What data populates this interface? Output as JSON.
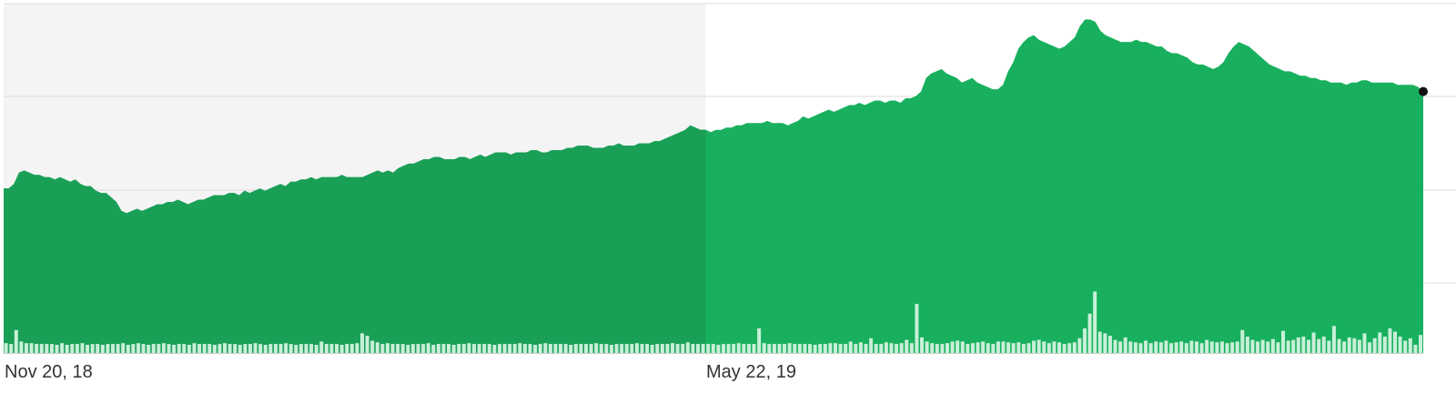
{
  "chart_data": {
    "type": "area",
    "title": "",
    "xlabel": "",
    "ylabel": "",
    "x_ticks": [
      "Nov 20, 18",
      "May 22, 19"
    ],
    "grid": true,
    "legend": "none",
    "shaded_region": {
      "from": "Nov 20, 18",
      "to": "May 22, 19"
    },
    "colors": {
      "area": "#18b05e",
      "area_shaded": "#1a9f57",
      "volume": "#c8f0d8",
      "gridline": "#dddddd",
      "shaded_background": "#f4f4f4",
      "end_marker": "#111111"
    },
    "ylim": [
      0,
      1
    ],
    "price_series": {
      "name": "",
      "values": [
        0.73,
        0.73,
        0.75,
        0.8,
        0.81,
        0.8,
        0.79,
        0.79,
        0.78,
        0.78,
        0.77,
        0.78,
        0.77,
        0.76,
        0.77,
        0.75,
        0.74,
        0.74,
        0.72,
        0.71,
        0.71,
        0.69,
        0.67,
        0.63,
        0.62,
        0.63,
        0.64,
        0.63,
        0.64,
        0.65,
        0.66,
        0.66,
        0.67,
        0.67,
        0.68,
        0.67,
        0.66,
        0.67,
        0.68,
        0.68,
        0.69,
        0.7,
        0.7,
        0.7,
        0.71,
        0.71,
        0.7,
        0.72,
        0.71,
        0.72,
        0.73,
        0.72,
        0.73,
        0.74,
        0.75,
        0.74,
        0.76,
        0.76,
        0.77,
        0.77,
        0.78,
        0.77,
        0.78,
        0.78,
        0.78,
        0.78,
        0.79,
        0.78,
        0.78,
        0.78,
        0.78,
        0.79,
        0.8,
        0.81,
        0.8,
        0.81,
        0.8,
        0.82,
        0.83,
        0.84,
        0.84,
        0.85,
        0.86,
        0.86,
        0.87,
        0.87,
        0.86,
        0.86,
        0.86,
        0.87,
        0.87,
        0.86,
        0.87,
        0.88,
        0.87,
        0.88,
        0.89,
        0.89,
        0.89,
        0.88,
        0.89,
        0.89,
        0.89,
        0.9,
        0.9,
        0.89,
        0.89,
        0.9,
        0.9,
        0.9,
        0.91,
        0.91,
        0.92,
        0.92,
        0.92,
        0.91,
        0.91,
        0.91,
        0.92,
        0.92,
        0.93,
        0.92,
        0.92,
        0.92,
        0.93,
        0.93,
        0.93,
        0.94,
        0.94,
        0.95,
        0.96,
        0.97,
        0.98,
        0.99,
        1.01,
        1.0,
        0.99,
        0.99,
        0.98,
        0.99,
        0.99,
        1.0,
        1.0,
        1.01,
        1.01,
        1.02,
        1.02,
        1.02,
        1.02,
        1.03,
        1.02,
        1.02,
        1.02,
        1.01,
        1.02,
        1.03,
        1.05,
        1.04,
        1.05,
        1.06,
        1.07,
        1.08,
        1.07,
        1.08,
        1.09,
        1.1,
        1.1,
        1.11,
        1.1,
        1.11,
        1.12,
        1.12,
        1.11,
        1.12,
        1.12,
        1.11,
        1.13,
        1.13,
        1.14,
        1.16,
        1.22,
        1.24,
        1.25,
        1.26,
        1.24,
        1.23,
        1.22,
        1.2,
        1.21,
        1.22,
        1.2,
        1.19,
        1.18,
        1.17,
        1.17,
        1.19,
        1.25,
        1.29,
        1.35,
        1.38,
        1.4,
        1.41,
        1.39,
        1.38,
        1.37,
        1.36,
        1.35,
        1.36,
        1.38,
        1.4,
        1.45,
        1.48,
        1.48,
        1.47,
        1.43,
        1.41,
        1.4,
        1.39,
        1.38,
        1.38,
        1.38,
        1.39,
        1.38,
        1.38,
        1.37,
        1.36,
        1.36,
        1.34,
        1.33,
        1.33,
        1.32,
        1.31,
        1.29,
        1.28,
        1.28,
        1.27,
        1.26,
        1.27,
        1.29,
        1.33,
        1.36,
        1.38,
        1.37,
        1.36,
        1.34,
        1.32,
        1.3,
        1.28,
        1.27,
        1.26,
        1.25,
        1.25,
        1.24,
        1.23,
        1.23,
        1.22,
        1.22,
        1.21,
        1.21,
        1.2,
        1.2,
        1.2,
        1.19,
        1.2,
        1.2,
        1.21,
        1.21,
        1.2,
        1.2,
        1.2,
        1.2,
        1.2,
        1.19,
        1.19,
        1.19,
        1.19,
        1.18,
        1.16
      ]
    },
    "volume_series": {
      "name": "",
      "values": [
        0.12,
        0.11,
        0.28,
        0.14,
        0.12,
        0.12,
        0.11,
        0.11,
        0.11,
        0.11,
        0.1,
        0.12,
        0.1,
        0.11,
        0.11,
        0.12,
        0.1,
        0.11,
        0.11,
        0.1,
        0.11,
        0.11,
        0.11,
        0.12,
        0.1,
        0.11,
        0.12,
        0.11,
        0.1,
        0.11,
        0.11,
        0.12,
        0.11,
        0.1,
        0.11,
        0.11,
        0.1,
        0.12,
        0.11,
        0.11,
        0.11,
        0.1,
        0.11,
        0.12,
        0.11,
        0.11,
        0.1,
        0.11,
        0.11,
        0.12,
        0.11,
        0.1,
        0.11,
        0.11,
        0.11,
        0.12,
        0.11,
        0.1,
        0.11,
        0.11,
        0.11,
        0.1,
        0.14,
        0.11,
        0.11,
        0.11,
        0.1,
        0.11,
        0.11,
        0.12,
        0.24,
        0.21,
        0.15,
        0.13,
        0.11,
        0.12,
        0.11,
        0.11,
        0.11,
        0.1,
        0.11,
        0.11,
        0.11,
        0.12,
        0.1,
        0.11,
        0.11,
        0.11,
        0.1,
        0.11,
        0.11,
        0.12,
        0.11,
        0.11,
        0.11,
        0.11,
        0.1,
        0.11,
        0.11,
        0.11,
        0.11,
        0.12,
        0.11,
        0.11,
        0.1,
        0.11,
        0.12,
        0.11,
        0.11,
        0.11,
        0.11,
        0.1,
        0.11,
        0.11,
        0.11,
        0.11,
        0.12,
        0.11,
        0.11,
        0.1,
        0.11,
        0.11,
        0.11,
        0.11,
        0.12,
        0.11,
        0.11,
        0.1,
        0.11,
        0.11,
        0.11,
        0.12,
        0.11,
        0.11,
        0.13,
        0.11,
        0.11,
        0.11,
        0.11,
        0.11,
        0.1,
        0.11,
        0.11,
        0.11,
        0.12,
        0.11,
        0.11,
        0.11,
        0.3,
        0.12,
        0.11,
        0.11,
        0.11,
        0.11,
        0.12,
        0.11,
        0.11,
        0.11,
        0.11,
        0.1,
        0.11,
        0.11,
        0.12,
        0.12,
        0.11,
        0.11,
        0.14,
        0.11,
        0.13,
        0.11,
        0.18,
        0.11,
        0.11,
        0.13,
        0.12,
        0.11,
        0.12,
        0.16,
        0.12,
        0.6,
        0.19,
        0.14,
        0.12,
        0.11,
        0.11,
        0.12,
        0.14,
        0.15,
        0.14,
        0.11,
        0.12,
        0.13,
        0.14,
        0.12,
        0.11,
        0.14,
        0.14,
        0.13,
        0.12,
        0.13,
        0.11,
        0.12,
        0.15,
        0.16,
        0.14,
        0.12,
        0.14,
        0.13,
        0.11,
        0.12,
        0.13,
        0.18,
        0.3,
        0.48,
        0.75,
        0.26,
        0.24,
        0.21,
        0.16,
        0.14,
        0.19,
        0.14,
        0.13,
        0.12,
        0.15,
        0.12,
        0.14,
        0.13,
        0.15,
        0.12,
        0.13,
        0.14,
        0.12,
        0.15,
        0.14,
        0.12,
        0.16,
        0.14,
        0.13,
        0.14,
        0.12,
        0.13,
        0.14,
        0.28,
        0.2,
        0.16,
        0.14,
        0.16,
        0.14,
        0.17,
        0.13,
        0.27,
        0.15,
        0.16,
        0.19,
        0.2,
        0.16,
        0.25,
        0.17,
        0.2,
        0.15,
        0.33,
        0.17,
        0.14,
        0.19,
        0.18,
        0.16,
        0.24,
        0.13,
        0.18,
        0.25,
        0.2,
        0.3,
        0.26,
        0.2,
        0.15,
        0.18,
        0.1,
        0.22
      ]
    }
  }
}
